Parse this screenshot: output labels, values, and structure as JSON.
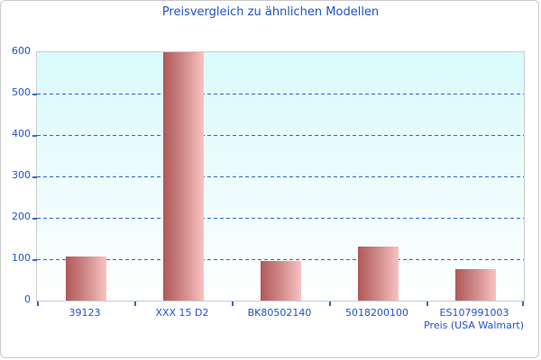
{
  "chart_data": {
    "type": "bar",
    "title": "Preisvergleich zu ähnlichen Modellen",
    "xlabel": "Preis (USA Walmart)",
    "ylabel": "",
    "categories": [
      "39123",
      "XXX 15 D2",
      "BK80502140",
      "5018200100",
      "ES107991003"
    ],
    "values": [
      107,
      600,
      95,
      130,
      75
    ],
    "ylim": [
      0,
      600
    ],
    "yticks": [
      0,
      100,
      200,
      300,
      400,
      500,
      600
    ],
    "grid": "horizontal dashed lines at 100..500",
    "legend": "none"
  },
  "colors": {
    "label_blue": "#2052cc",
    "grid_blue": "#3366cc",
    "bar_gradient_left": "#b05858",
    "bar_gradient_right": "#f9c2c2",
    "plot_bg_top": "#d9fafb",
    "plot_bg_bottom": "#ffffff",
    "border_gray": "#cccccc"
  }
}
